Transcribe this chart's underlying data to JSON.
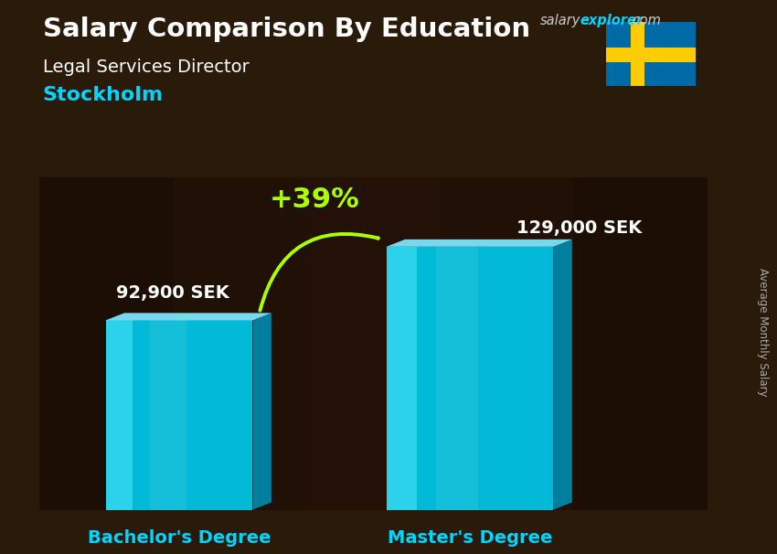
{
  "title_main": "Salary Comparison By Education",
  "subtitle": "Legal Services Director",
  "city": "Stockholm",
  "ylabel": "Average Monthly Salary",
  "categories": [
    "Bachelor's Degree",
    "Master's Degree"
  ],
  "values": [
    92900,
    129000
  ],
  "value_labels": [
    "92,900 SEK",
    "129,000 SEK"
  ],
  "pct_change": "+39%",
  "bg_color": "#2a1a0a",
  "title_color": "#ffffff",
  "subtitle_color": "#ffffff",
  "city_color": "#00d4ff",
  "value_label_color": "#ffffff",
  "category_label_color": "#00d4ff",
  "pct_color": "#aaff00",
  "arrow_color": "#aaff00",
  "bar_face_color": "#00c8e8",
  "bar_right_color": "#0088aa",
  "bar_top_color": "#80e8ff",
  "bar_highlight_color": "#60f0ff",
  "salary_color": "#cccccc",
  "explorer_color": "#00d4ff",
  "side_label_color": "#aaaaaa",
  "flag_blue": "#006AA7",
  "flag_yellow": "#FECC02"
}
